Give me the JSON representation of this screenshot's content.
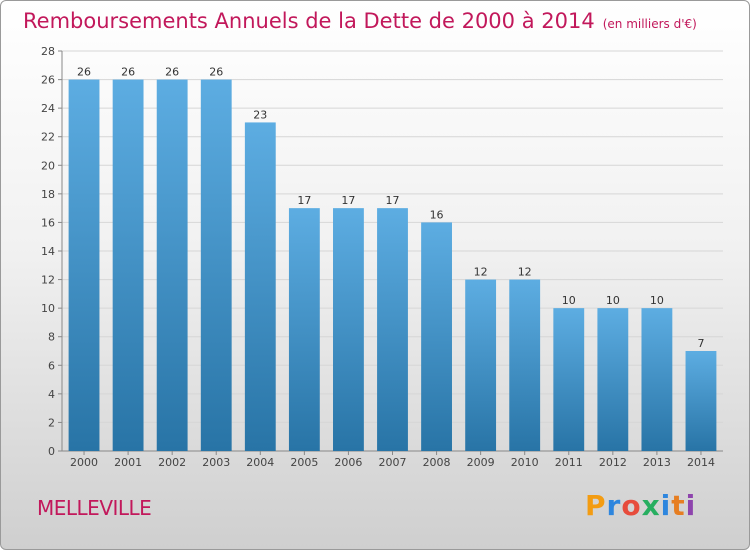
{
  "title": "Remboursements Annuels de la Dette de 2000 à 2014",
  "unit_note": "(en milliers d'€)",
  "city": "MELLEVILLE",
  "logo": {
    "letters": [
      "P",
      "r",
      "o",
      "x",
      "i",
      "t",
      "i"
    ],
    "colors": [
      "#f39c12",
      "#2e86de",
      "#e74c3c",
      "#27ae60",
      "#2e86de",
      "#e67e22",
      "#8e44ad"
    ]
  },
  "colors": {
    "title": "#c2185b",
    "bar_top": "#5dade2",
    "bar_bottom": "#2874a6"
  },
  "chart_data": {
    "type": "bar",
    "title": "Remboursements Annuels de la Dette de 2000 à 2014",
    "categories": [
      "2000",
      "2001",
      "2002",
      "2003",
      "2004",
      "2005",
      "2006",
      "2007",
      "2008",
      "2009",
      "2010",
      "2011",
      "2012",
      "2013",
      "2014"
    ],
    "values": [
      26,
      26,
      26,
      26,
      23,
      17,
      17,
      17,
      16,
      12,
      12,
      10,
      10,
      10,
      7
    ],
    "ylim": [
      0,
      28
    ],
    "yticks": [
      0,
      2,
      4,
      6,
      8,
      10,
      12,
      14,
      16,
      18,
      20,
      22,
      24,
      26,
      28
    ],
    "grid": true,
    "legend": "none"
  }
}
